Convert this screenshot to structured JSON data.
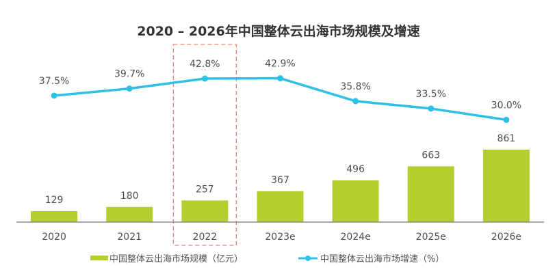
{
  "chart_data": {
    "type": "bar+line",
    "title": "2020 – 2026年中国整体云出海市场规模及增速",
    "categories": [
      "2020",
      "2021",
      "2022",
      "2023e",
      "2024e",
      "2025e",
      "2026e"
    ],
    "series": [
      {
        "name": "中国整体云出海市场规模（亿元）",
        "type": "bar",
        "color": "#b2cf2f",
        "values": [
          129,
          180,
          257,
          367,
          496,
          663,
          861
        ],
        "labels": [
          "129",
          "180",
          "257",
          "367",
          "496",
          "663",
          "861"
        ]
      },
      {
        "name": "中国整体云出海市场增速（%）",
        "type": "line",
        "color": "#2fc0e6",
        "values": [
          37.5,
          39.7,
          42.8,
          42.9,
          35.8,
          33.5,
          30.0
        ],
        "labels": [
          "37.5%",
          "39.7%",
          "42.8%",
          "42.9%",
          "35.8%",
          "33.5%",
          "30.0%"
        ]
      }
    ],
    "highlight": {
      "category": "2022",
      "style": "dashed-box",
      "color": "#e8807a"
    },
    "xlabel": "",
    "ylabel": "",
    "grid": false,
    "legend": "bottom-center"
  }
}
